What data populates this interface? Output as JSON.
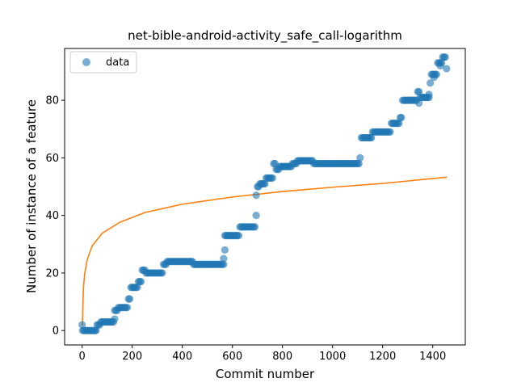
{
  "chart_data": {
    "type": "scatter",
    "title": "net-bible-android-activity_safe_call-logarithm",
    "xlabel": "Commit number",
    "ylabel": "Number of instance of a feature",
    "xlim": [
      -70,
      1530
    ],
    "ylim": [
      -5,
      98
    ],
    "xticks": [
      0,
      200,
      400,
      600,
      800,
      1000,
      1200,
      1400
    ],
    "yticks": [
      0,
      20,
      40,
      60,
      80
    ],
    "grid": false,
    "legend_position": "upper-left",
    "colors": {
      "data": "#1f77b4",
      "fit": "#ff7f0e"
    },
    "series": [
      {
        "name": "data",
        "kind": "scatter",
        "steps": [
          [
            0,
            2
          ],
          [
            2,
            0
          ],
          [
            55,
            0
          ],
          [
            60,
            2
          ],
          [
            75,
            3
          ],
          [
            125,
            3
          ],
          [
            130,
            7
          ],
          [
            145,
            8
          ],
          [
            185,
            11
          ],
          [
            195,
            15
          ],
          [
            225,
            17
          ],
          [
            240,
            21
          ],
          [
            255,
            20
          ],
          [
            315,
            20
          ],
          [
            325,
            23
          ],
          [
            340,
            24
          ],
          [
            440,
            24
          ],
          [
            445,
            23
          ],
          [
            565,
            23
          ],
          [
            570,
            33
          ],
          [
            590,
            33
          ],
          [
            600,
            33
          ],
          [
            630,
            36
          ],
          [
            690,
            36
          ],
          [
            695,
            47
          ],
          [
            700,
            50
          ],
          [
            710,
            51
          ],
          [
            735,
            53
          ],
          [
            765,
            58
          ],
          [
            775,
            56
          ],
          [
            790,
            57
          ],
          [
            840,
            58
          ],
          [
            860,
            59
          ],
          [
            925,
            58
          ],
          [
            1110,
            60
          ],
          [
            1115,
            67
          ],
          [
            1160,
            69
          ],
          [
            1235,
            72
          ],
          [
            1270,
            74
          ],
          [
            1280,
            80
          ],
          [
            1325,
            80
          ],
          [
            1340,
            83
          ],
          [
            1350,
            81
          ],
          [
            1390,
            86
          ],
          [
            1395,
            89
          ],
          [
            1420,
            93
          ],
          [
            1440,
            95
          ],
          [
            1455,
            91
          ]
        ],
        "outliers": [
          [
            130,
            4
          ],
          [
            565,
            25
          ],
          [
            570,
            28
          ],
          [
            695,
            40
          ],
          [
            1345,
            79
          ],
          [
            1385,
            82
          ],
          [
            1405,
            88
          ],
          [
            1430,
            92
          ]
        ]
      },
      {
        "kind": "line",
        "x": [
          1,
          5,
          10,
          20,
          40,
          80,
          150,
          250,
          400,
          600,
          800,
          1000,
          1200,
          1456
        ],
        "y": [
          1.8,
          14.6,
          19.6,
          24.6,
          29.4,
          33.8,
          37.6,
          41.0,
          43.9,
          46.4,
          48.3,
          49.8,
          51.1,
          53.3
        ]
      }
    ]
  }
}
